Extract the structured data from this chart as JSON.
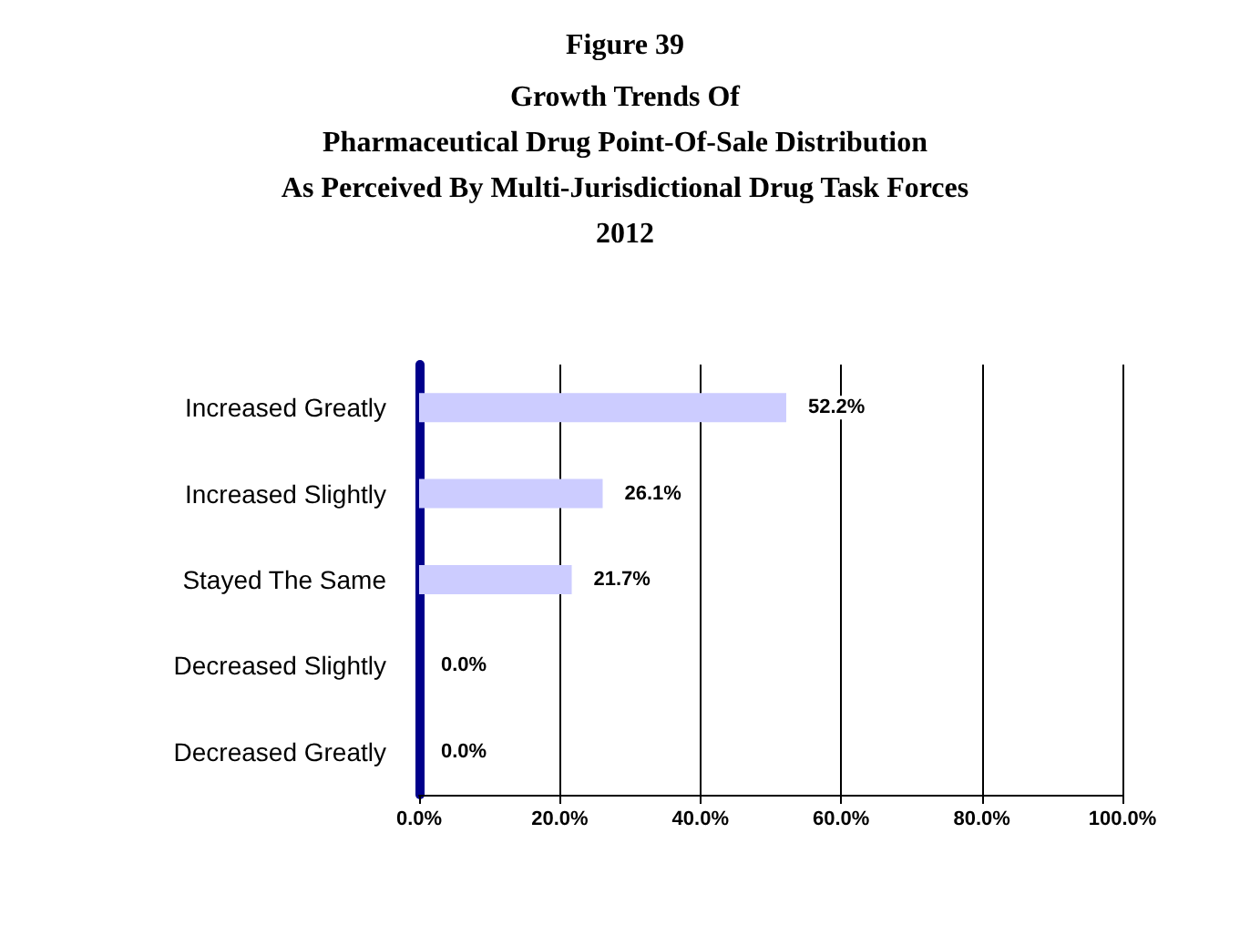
{
  "chart_data": {
    "type": "bar",
    "orientation": "horizontal",
    "title": "Figure 39",
    "subtitle": "Growth Trends Of\nPharmaceutical Drug Point-Of-Sale Distribution\nAs Perceived By Multi-Jurisdictional Drug Task Forces\n2012",
    "categories": [
      "Increased Greatly",
      "Increased Slightly",
      "Stayed The Same",
      "Decreased Slightly",
      "Decreased Greatly"
    ],
    "values": [
      52.2,
      26.1,
      21.7,
      0,
      0
    ],
    "value_labels": [
      "52.2%",
      "26.1%",
      "21.7%",
      "0.0%",
      "0.0%"
    ],
    "color": "#ccccff",
    "xlim": [
      0,
      100
    ],
    "xticks": [
      {
        "value": 0,
        "label": "0.0%"
      },
      {
        "value": 20,
        "label": "20.0%"
      },
      {
        "value": 40,
        "label": "40.0%"
      },
      {
        "value": 60,
        "label": "60.0%"
      },
      {
        "value": 80,
        "label": "80.0%"
      },
      {
        "value": 100,
        "label": "100.0%"
      }
    ],
    "grid": "x"
  }
}
